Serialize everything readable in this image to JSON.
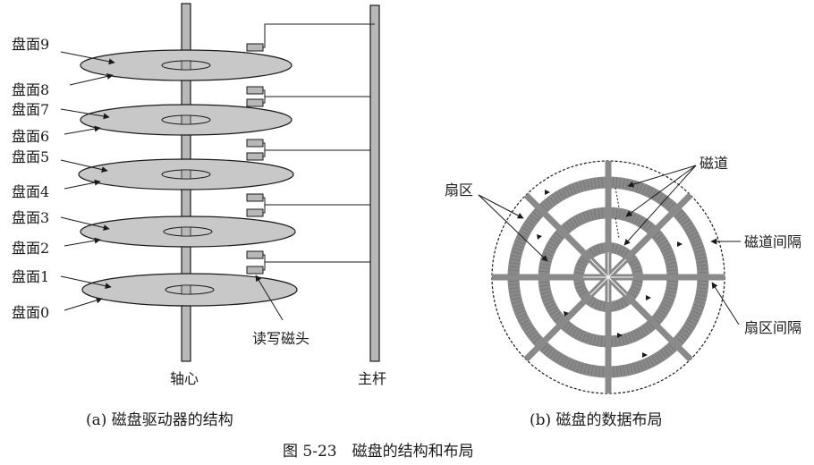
{
  "figure": {
    "title": "图 5-23　磁盘的结构和布局",
    "left": {
      "caption": "(a)  磁盘驱动器的结构",
      "platter_labels": [
        "盘面0",
        "盘面1",
        "盘面2",
        "盘面3",
        "盘面4",
        "盘面5",
        "盘面6",
        "盘面7",
        "盘面8",
        "盘面9"
      ],
      "spindle_label": "轴心",
      "rod_label": "主杆",
      "head_label": "读写磁头"
    },
    "right": {
      "caption": "(b)  磁盘的数据布局",
      "sector_label": "扇区",
      "track_label": "磁道",
      "track_gap_label": "磁道间隔",
      "sector_gap_label": "扇区间隔"
    }
  },
  "colors": {
    "platter_fill": "#c8c8c8",
    "track_fill": "#8a8a8a",
    "line": "#1a1a1a"
  }
}
